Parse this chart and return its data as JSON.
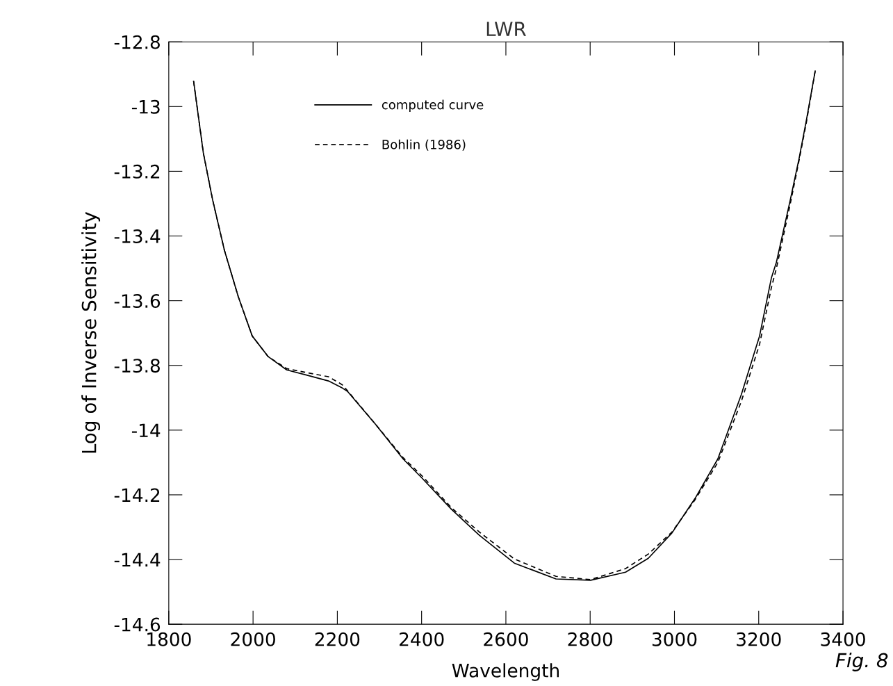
{
  "chart_data": {
    "type": "line",
    "title": "LWR",
    "xlabel": "Wavelength",
    "ylabel": "Log of Inverse Sensitivity",
    "xlim": [
      1800,
      3400
    ],
    "xticks": [
      1800,
      2000,
      2200,
      2400,
      2600,
      2800,
      3000,
      3200,
      3400
    ],
    "ylim": [
      -14.6,
      -12.8
    ],
    "yticks": [
      -14.6,
      -14.4,
      -14.2,
      -14,
      -13.8,
      -13.6,
      -13.4,
      -13.2,
      -13,
      -12.8
    ],
    "grid": false,
    "legend": "top left",
    "annotations": [
      "Fig. 8"
    ],
    "series": [
      {
        "name": "computed curve",
        "color": "#000000",
        "line_style": "solid",
        "x": [
          1859,
          1882,
          1904,
          1932,
          1965,
          1998,
          2036,
          2080,
          2130,
          2179,
          2212,
          2224,
          2290,
          2356,
          2400,
          2471,
          2537,
          2620,
          2719,
          2801,
          2884,
          2938,
          2994,
          3049,
          3103,
          3159,
          3202,
          3230,
          3242,
          3275,
          3296,
          3313,
          3334
        ],
        "values": [
          -12.922,
          -13.143,
          -13.288,
          -13.444,
          -13.588,
          -13.709,
          -13.773,
          -13.814,
          -13.831,
          -13.848,
          -13.87,
          -13.88,
          -13.981,
          -14.089,
          -14.147,
          -14.245,
          -14.325,
          -14.411,
          -14.46,
          -14.464,
          -14.439,
          -14.396,
          -14.318,
          -14.211,
          -14.089,
          -13.889,
          -13.709,
          -13.53,
          -13.481,
          -13.288,
          -13.159,
          -13.043,
          -12.89
        ]
      },
      {
        "name": "Bohlin (1986)",
        "color": "#000000",
        "line_style": "dashed",
        "x": [
          1859,
          1882,
          1904,
          1932,
          1965,
          1998,
          2036,
          2080,
          2130,
          2179,
          2212,
          2224,
          2290,
          2356,
          2400,
          2471,
          2537,
          2620,
          2719,
          2801,
          2884,
          2938,
          2994,
          3049,
          3103,
          3159,
          3202,
          3230,
          3242,
          3275,
          3296,
          3313,
          3334
        ],
        "values": [
          -12.922,
          -13.143,
          -13.288,
          -13.444,
          -13.588,
          -13.709,
          -13.773,
          -13.81,
          -13.823,
          -13.835,
          -13.86,
          -13.878,
          -13.981,
          -14.085,
          -14.14,
          -14.24,
          -14.315,
          -14.398,
          -14.452,
          -14.462,
          -14.428,
          -14.383,
          -14.315,
          -14.215,
          -14.1,
          -13.91,
          -13.735,
          -13.56,
          -13.5,
          -13.3,
          -13.165,
          -13.05,
          -12.89
        ]
      }
    ]
  }
}
